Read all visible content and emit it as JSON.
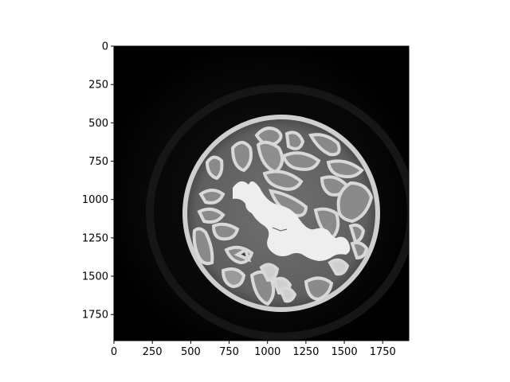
{
  "plot": {
    "kind": "image",
    "description_hidden": true,
    "colormap": "gray",
    "image_width": 1920,
    "image_height": 1920,
    "x_ticks": [
      0,
      250,
      500,
      750,
      1000,
      1250,
      1500,
      1750
    ],
    "y_ticks": [
      0,
      250,
      500,
      750,
      1000,
      1250,
      1500,
      1750
    ],
    "x_tick_labels": [
      "0",
      "250",
      "500",
      "750",
      "1000",
      "1250",
      "1500",
      "1750"
    ],
    "y_tick_labels": [
      "0",
      "250",
      "500",
      "750",
      "1000",
      "1250",
      "1500",
      "1750"
    ],
    "background_color": "#000000",
    "specimen_ring_color": "#cfcfcf",
    "specimen_fill_color": "#6a6a6a",
    "bright_region_color": "#f0f0f0"
  }
}
